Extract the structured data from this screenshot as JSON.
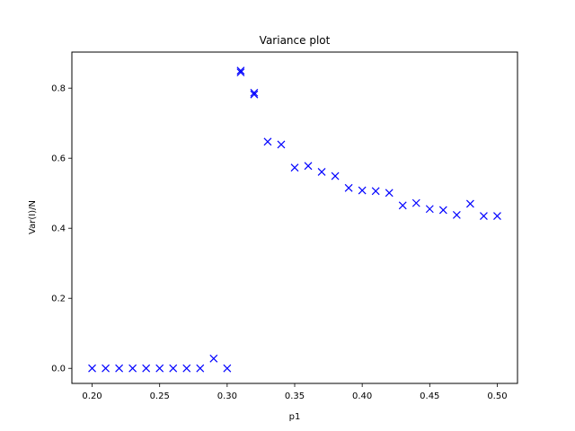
{
  "chart_data": {
    "type": "scatter",
    "title": "Variance plot",
    "xlabel": "p1",
    "ylabel": "Var(I)/N",
    "xlim": [
      0.185,
      0.515
    ],
    "ylim": [
      -0.043,
      0.903
    ],
    "grid": false,
    "marker": "x",
    "marker_color": "#0000ff",
    "x_ticks": [
      0.2,
      0.25,
      0.3,
      0.35,
      0.4,
      0.45,
      0.5
    ],
    "x_tick_labels": [
      "0.20",
      "0.25",
      "0.30",
      "0.35",
      "0.40",
      "0.45",
      "0.50"
    ],
    "y_ticks": [
      0.0,
      0.2,
      0.4,
      0.6,
      0.8
    ],
    "y_tick_labels": [
      "0.0",
      "0.2",
      "0.4",
      "0.6",
      "0.8"
    ],
    "series": [
      {
        "x": [
          0.2,
          0.21,
          0.22,
          0.23,
          0.24,
          0.25,
          0.26,
          0.27,
          0.28,
          0.29,
          0.3,
          0.31,
          0.31,
          0.32,
          0.32,
          0.33,
          0.34,
          0.35,
          0.36,
          0.37,
          0.38,
          0.39,
          0.4,
          0.41,
          0.42,
          0.43,
          0.44,
          0.45,
          0.46,
          0.47,
          0.48,
          0.49,
          0.5
        ],
        "y": [
          0.0,
          0.0,
          0.0,
          0.0,
          0.0,
          0.0,
          0.0,
          0.0,
          0.0,
          0.028,
          0.0,
          0.85,
          0.845,
          0.787,
          0.782,
          0.647,
          0.639,
          0.573,
          0.578,
          0.561,
          0.549,
          0.515,
          0.508,
          0.506,
          0.501,
          0.465,
          0.472,
          0.455,
          0.452,
          0.438,
          0.47,
          0.435,
          0.435
        ]
      }
    ]
  }
}
